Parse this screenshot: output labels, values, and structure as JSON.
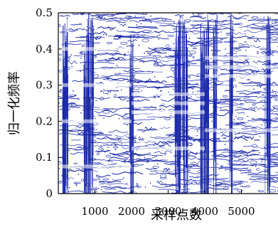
{
  "chart_data": {
    "type": "line",
    "title": "",
    "xlabel": "采样点数",
    "ylabel": "归一化频率",
    "x_ticks": [
      1000,
      2000,
      3000,
      4000,
      5000
    ],
    "y_ticks": [
      0,
      0.1,
      0.2,
      0.3,
      0.4,
      0.5
    ],
    "y_tick_labels": [
      "0",
      "0.1",
      "0.2",
      "0.3",
      "0.4",
      "0.5"
    ],
    "xlim": [
      0,
      6000
    ],
    "ylim": [
      0,
      0.5
    ],
    "colors": {
      "background_noise": "#1c2aa8",
      "ridge_blue": "#2f7fe0",
      "ridge_cyan": "#22d3e6",
      "ridge_green": "#8be04a",
      "ridge_yellow": "#e8d23a",
      "ridge_orange": "#e27a2a"
    },
    "series": [
      {
        "x": [
          0,
          2000
        ],
        "y": [
          0.4,
          0.4
        ],
        "colormap": "blue-green"
      },
      {
        "x": [
          0,
          2000
        ],
        "y": [
          0.3,
          0.3
        ],
        "colormap": "green-yellow"
      },
      {
        "x": [
          0,
          2000
        ],
        "y": [
          0.2,
          0.2
        ],
        "colormap": "orange-yellow"
      },
      {
        "x": [
          0,
          2000
        ],
        "y": [
          0.075,
          0.075
        ],
        "colormap": "blue-green"
      },
      {
        "x": [
          2000,
          4000
        ],
        "y": [
          0.275,
          0.275
        ],
        "colormap": "orange"
      },
      {
        "x": [
          2000,
          4000
        ],
        "y": [
          0.25,
          0.25
        ],
        "colormap": "orange"
      },
      {
        "x": [
          2000,
          4000
        ],
        "y": [
          0.225,
          0.225
        ],
        "colormap": "orange"
      },
      {
        "x": [
          2000,
          4000
        ],
        "y": [
          0.125,
          0.125
        ],
        "colormap": "orange"
      },
      {
        "x": [
          4000,
          6000
        ],
        "y": [
          0.375,
          0.375
        ],
        "colormap": "orange"
      },
      {
        "x": [
          4000,
          6000
        ],
        "y": [
          0.35,
          0.35
        ],
        "colormap": "orange"
      },
      {
        "x": [
          4000,
          6000
        ],
        "y": [
          0.325,
          0.325
        ],
        "colormap": "green-yellow"
      },
      {
        "x": [
          4000,
          6000
        ],
        "y": [
          0.175,
          0.175
        ],
        "colormap": "green-yellow"
      }
    ]
  }
}
